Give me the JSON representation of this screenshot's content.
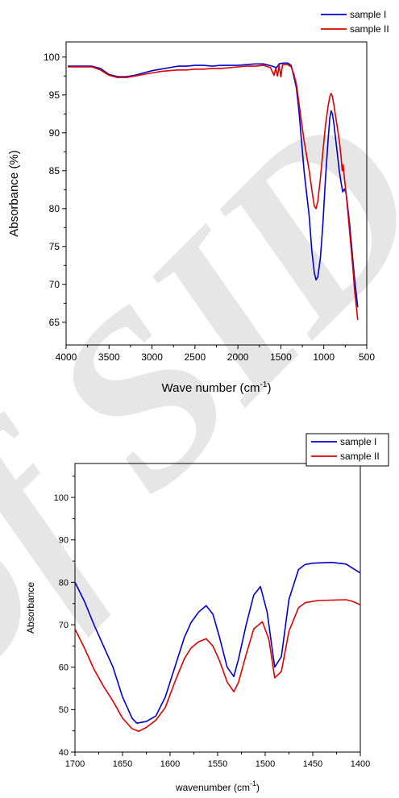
{
  "watermark": {
    "text": "of SID",
    "color": "#e6e6e6"
  },
  "chart_data": [
    {
      "type": "line",
      "xlabel": "Wave number (cm",
      "xlabel_sup": "-1",
      "xlabel_tail": ")",
      "ylabel": "Absorbance (%)",
      "xlim": [
        4000,
        500
      ],
      "ylim": [
        62,
        102
      ],
      "xticks": [
        4000,
        3500,
        3000,
        2500,
        2000,
        1500,
        1000,
        500
      ],
      "yticks": [
        65,
        70,
        75,
        80,
        85,
        90,
        95,
        100
      ],
      "legend_position": "top-right",
      "series": [
        {
          "name": "sample I",
          "color": "#0000cc",
          "points": [
            [
              3980,
              98.8
            ],
            [
              3800,
              98.8
            ],
            [
              3700,
              98.8
            ],
            [
              3600,
              98.5
            ],
            [
              3500,
              97.7
            ],
            [
              3400,
              97.4
            ],
            [
              3300,
              97.4
            ],
            [
              3200,
              97.6
            ],
            [
              3100,
              97.9
            ],
            [
              3000,
              98.2
            ],
            [
              2900,
              98.4
            ],
            [
              2800,
              98.6
            ],
            [
              2700,
              98.8
            ],
            [
              2600,
              98.8
            ],
            [
              2500,
              98.9
            ],
            [
              2400,
              98.9
            ],
            [
              2300,
              98.8
            ],
            [
              2200,
              98.9
            ],
            [
              2100,
              98.9
            ],
            [
              2000,
              98.9
            ],
            [
              1900,
              99.0
            ],
            [
              1800,
              99.1
            ],
            [
              1700,
              99.1
            ],
            [
              1600,
              98.8
            ],
            [
              1550,
              98.6
            ],
            [
              1520,
              99.1
            ],
            [
              1480,
              99.2
            ],
            [
              1420,
              99.2
            ],
            [
              1380,
              98.9
            ],
            [
              1350,
              97.5
            ],
            [
              1320,
              96.0
            ],
            [
              1290,
              93.0
            ],
            [
              1260,
              89.0
            ],
            [
              1230,
              85.0
            ],
            [
              1200,
              82.0
            ],
            [
              1170,
              79.0
            ],
            [
              1140,
              74.5
            ],
            [
              1110,
              71.5
            ],
            [
              1090,
              70.6
            ],
            [
              1070,
              71.0
            ],
            [
              1040,
              73.5
            ],
            [
              1010,
              78.0
            ],
            [
              980,
              84.0
            ],
            [
              950,
              89.0
            ],
            [
              930,
              92.0
            ],
            [
              915,
              92.9
            ],
            [
              900,
              92.5
            ],
            [
              880,
              91.0
            ],
            [
              860,
              89.0
            ],
            [
              840,
              87.0
            ],
            [
              820,
              85.0
            ],
            [
              800,
              83.5
            ],
            [
              780,
              82.2
            ],
            [
              760,
              82.6
            ],
            [
              740,
              82.0
            ],
            [
              720,
              80.0
            ],
            [
              700,
              78.0
            ],
            [
              680,
              75.5
            ],
            [
              660,
              73.0
            ],
            [
              640,
              70.5
            ],
            [
              620,
              68.5
            ],
            [
              605,
              67.0
            ]
          ]
        },
        {
          "name": "sample II",
          "color": "#dd0000",
          "points": [
            [
              3980,
              98.7
            ],
            [
              3800,
              98.7
            ],
            [
              3700,
              98.7
            ],
            [
              3600,
              98.3
            ],
            [
              3500,
              97.6
            ],
            [
              3400,
              97.3
            ],
            [
              3300,
              97.3
            ],
            [
              3200,
              97.5
            ],
            [
              3100,
              97.7
            ],
            [
              3000,
              97.9
            ],
            [
              2900,
              98.1
            ],
            [
              2800,
              98.2
            ],
            [
              2700,
              98.3
            ],
            [
              2600,
              98.3
            ],
            [
              2500,
              98.4
            ],
            [
              2400,
              98.4
            ],
            [
              2300,
              98.5
            ],
            [
              2200,
              98.5
            ],
            [
              2100,
              98.6
            ],
            [
              2000,
              98.7
            ],
            [
              1900,
              98.8
            ],
            [
              1800,
              98.8
            ],
            [
              1700,
              98.9
            ],
            [
              1620,
              98.6
            ],
            [
              1580,
              97.6
            ],
            [
              1560,
              98.5
            ],
            [
              1540,
              97.5
            ],
            [
              1520,
              98.9
            ],
            [
              1500,
              97.4
            ],
            [
              1480,
              99.0
            ],
            [
              1420,
              99.0
            ],
            [
              1380,
              98.7
            ],
            [
              1350,
              97.8
            ],
            [
              1320,
              96.5
            ],
            [
              1290,
              94.0
            ],
            [
              1260,
              91.5
            ],
            [
              1230,
              89.0
            ],
            [
              1200,
              87.0
            ],
            [
              1170,
              85.0
            ],
            [
              1140,
              82.5
            ],
            [
              1110,
              80.3
            ],
            [
              1090,
              80.0
            ],
            [
              1070,
              81.0
            ],
            [
              1040,
              84.0
            ],
            [
              1010,
              87.5
            ],
            [
              980,
              91.0
            ],
            [
              950,
              93.5
            ],
            [
              930,
              94.8
            ],
            [
              915,
              95.2
            ],
            [
              900,
              94.8
            ],
            [
              880,
              93.5
            ],
            [
              860,
              92.0
            ],
            [
              840,
              90.5
            ],
            [
              820,
              89.0
            ],
            [
              800,
              87.0
            ],
            [
              785,
              85.0
            ],
            [
              775,
              85.8
            ],
            [
              760,
              84.0
            ],
            [
              740,
              82.0
            ],
            [
              720,
              79.5
            ],
            [
              700,
              77.0
            ],
            [
              680,
              74.5
            ],
            [
              660,
              72.0
            ],
            [
              640,
              69.0
            ],
            [
              620,
              67.0
            ],
            [
              605,
              65.3
            ]
          ]
        }
      ]
    },
    {
      "type": "line",
      "xlabel": "wavenumber (cm",
      "xlabel_sup": "-1",
      "xlabel_tail": ")",
      "ylabel": "Absorbance",
      "xlim": [
        1700,
        1400
      ],
      "ylim": [
        40,
        108
      ],
      "xticks": [
        1700,
        1650,
        1600,
        1550,
        1500,
        1450,
        1400
      ],
      "yticks": [
        40,
        50,
        60,
        70,
        80,
        90,
        100
      ],
      "legend_position": "top-right",
      "series": [
        {
          "name": "sample I",
          "color": "#0000cc",
          "points": [
            [
              1700,
              80
            ],
            [
              1690,
              75.5
            ],
            [
              1680,
              70
            ],
            [
              1670,
              65
            ],
            [
              1660,
              60
            ],
            [
              1650,
              53
            ],
            [
              1640,
              48
            ],
            [
              1635,
              46.8
            ],
            [
              1625,
              47.2
            ],
            [
              1615,
              48.5
            ],
            [
              1605,
              53
            ],
            [
              1595,
              60
            ],
            [
              1585,
              67
            ],
            [
              1578,
              70.5
            ],
            [
              1570,
              73
            ],
            [
              1562,
              74.5
            ],
            [
              1555,
              72.5
            ],
            [
              1548,
              67
            ],
            [
              1540,
              60
            ],
            [
              1533,
              57.8
            ],
            [
              1528,
              62
            ],
            [
              1520,
              70
            ],
            [
              1512,
              77
            ],
            [
              1505,
              79
            ],
            [
              1498,
              73
            ],
            [
              1490,
              60
            ],
            [
              1483,
              62.5
            ],
            [
              1475,
              76
            ],
            [
              1465,
              83
            ],
            [
              1458,
              84.2
            ],
            [
              1450,
              84.5
            ],
            [
              1430,
              84.7
            ],
            [
              1415,
              84.3
            ],
            [
              1400,
              82.2
            ]
          ]
        },
        {
          "name": "sample II",
          "color": "#dd0000",
          "points": [
            [
              1700,
              69
            ],
            [
              1690,
              64.5
            ],
            [
              1680,
              59.5
            ],
            [
              1670,
              55.5
            ],
            [
              1660,
              52
            ],
            [
              1650,
              48
            ],
            [
              1640,
              45.5
            ],
            [
              1633,
              44.9
            ],
            [
              1625,
              45.8
            ],
            [
              1615,
              47.5
            ],
            [
              1605,
              50.5
            ],
            [
              1595,
              56.5
            ],
            [
              1585,
              62
            ],
            [
              1578,
              64.5
            ],
            [
              1570,
              66
            ],
            [
              1562,
              66.7
            ],
            [
              1555,
              65
            ],
            [
              1548,
              61.5
            ],
            [
              1540,
              56.5
            ],
            [
              1533,
              54.2
            ],
            [
              1528,
              56.5
            ],
            [
              1520,
              63
            ],
            [
              1512,
              69
            ],
            [
              1503,
              70.7
            ],
            [
              1496,
              66.5
            ],
            [
              1490,
              57.5
            ],
            [
              1483,
              59
            ],
            [
              1475,
              68.5
            ],
            [
              1465,
              74
            ],
            [
              1458,
              75.2
            ],
            [
              1445,
              75.7
            ],
            [
              1430,
              75.8
            ],
            [
              1415,
              75.9
            ],
            [
              1408,
              75.5
            ],
            [
              1400,
              74.7
            ]
          ]
        }
      ]
    }
  ]
}
